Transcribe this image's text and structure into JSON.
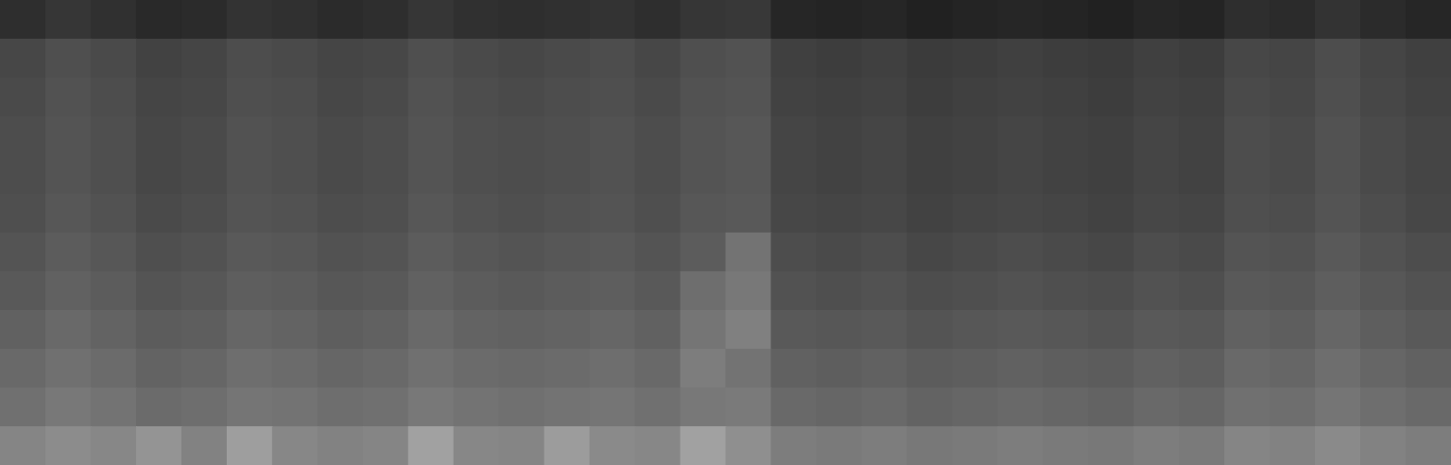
{
  "chart_data": {
    "type": "heatmap",
    "tick_labels": false,
    "xlim": [
      0,
      32
    ],
    "ylim": [
      0,
      12
    ],
    "zlim": [
      0,
      100
    ],
    "cells": [
      [
        18,
        21,
        19,
        16,
        17,
        20,
        19,
        17,
        18,
        21,
        19,
        18,
        19,
        20,
        18,
        21,
        22,
        15,
        14,
        15,
        13,
        14,
        15,
        14,
        13,
        15,
        14,
        18,
        17,
        20,
        17,
        15
      ],
      [
        28,
        31,
        29,
        26,
        27,
        30,
        29,
        27,
        28,
        31,
        29,
        28,
        29,
        30,
        28,
        31,
        32,
        25,
        24,
        25,
        23,
        24,
        25,
        24,
        23,
        25,
        24,
        28,
        27,
        30,
        27,
        25
      ],
      [
        29,
        32,
        30,
        27,
        28,
        31,
        30,
        28,
        29,
        32,
        30,
        29,
        30,
        31,
        29,
        32,
        33,
        26,
        25,
        26,
        24,
        25,
        26,
        25,
        24,
        26,
        25,
        29,
        28,
        31,
        28,
        26
      ],
      [
        30,
        33,
        31,
        28,
        29,
        32,
        31,
        29,
        30,
        33,
        31,
        30,
        31,
        32,
        30,
        33,
        34,
        27,
        26,
        27,
        25,
        26,
        27,
        26,
        25,
        27,
        26,
        30,
        29,
        32,
        29,
        27
      ],
      [
        30,
        33,
        31,
        28,
        29,
        32,
        31,
        29,
        30,
        33,
        31,
        30,
        31,
        32,
        30,
        33,
        34,
        27,
        26,
        27,
        25,
        26,
        27,
        26,
        25,
        27,
        26,
        30,
        29,
        32,
        29,
        27
      ],
      [
        31,
        34,
        32,
        29,
        30,
        33,
        32,
        30,
        31,
        34,
        32,
        31,
        32,
        33,
        31,
        34,
        35,
        28,
        27,
        28,
        26,
        27,
        28,
        27,
        26,
        28,
        27,
        31,
        30,
        33,
        30,
        28
      ],
      [
        33,
        36,
        34,
        31,
        32,
        35,
        34,
        32,
        33,
        36,
        34,
        33,
        34,
        35,
        33,
        36,
        45,
        30,
        29,
        30,
        28,
        29,
        30,
        29,
        28,
        30,
        29,
        33,
        32,
        35,
        32,
        30
      ],
      [
        35,
        38,
        36,
        33,
        34,
        37,
        36,
        34,
        35,
        38,
        36,
        35,
        36,
        37,
        35,
        43,
        47,
        32,
        31,
        32,
        30,
        31,
        32,
        31,
        30,
        32,
        31,
        35,
        34,
        37,
        34,
        32
      ],
      [
        38,
        41,
        39,
        36,
        37,
        40,
        39,
        37,
        38,
        41,
        39,
        38,
        39,
        40,
        38,
        46,
        50,
        35,
        34,
        35,
        33,
        34,
        35,
        34,
        33,
        35,
        34,
        38,
        37,
        40,
        37,
        35
      ],
      [
        41,
        44,
        42,
        39,
        40,
        43,
        42,
        40,
        41,
        44,
        42,
        41,
        42,
        43,
        41,
        49,
        45,
        38,
        37,
        38,
        36,
        37,
        38,
        37,
        36,
        38,
        37,
        41,
        40,
        43,
        40,
        38
      ],
      [
        44,
        47,
        45,
        42,
        43,
        46,
        45,
        43,
        44,
        47,
        45,
        44,
        45,
        46,
        44,
        47,
        48,
        41,
        40,
        41,
        39,
        40,
        41,
        40,
        39,
        41,
        40,
        44,
        43,
        46,
        43,
        41
      ],
      [
        52,
        55,
        53,
        58,
        51,
        62,
        53,
        51,
        52,
        63,
        53,
        52,
        61,
        54,
        53,
        63,
        56,
        49,
        48,
        49,
        47,
        48,
        49,
        48,
        47,
        49,
        48,
        52,
        51,
        54,
        51,
        49
      ]
    ]
  }
}
